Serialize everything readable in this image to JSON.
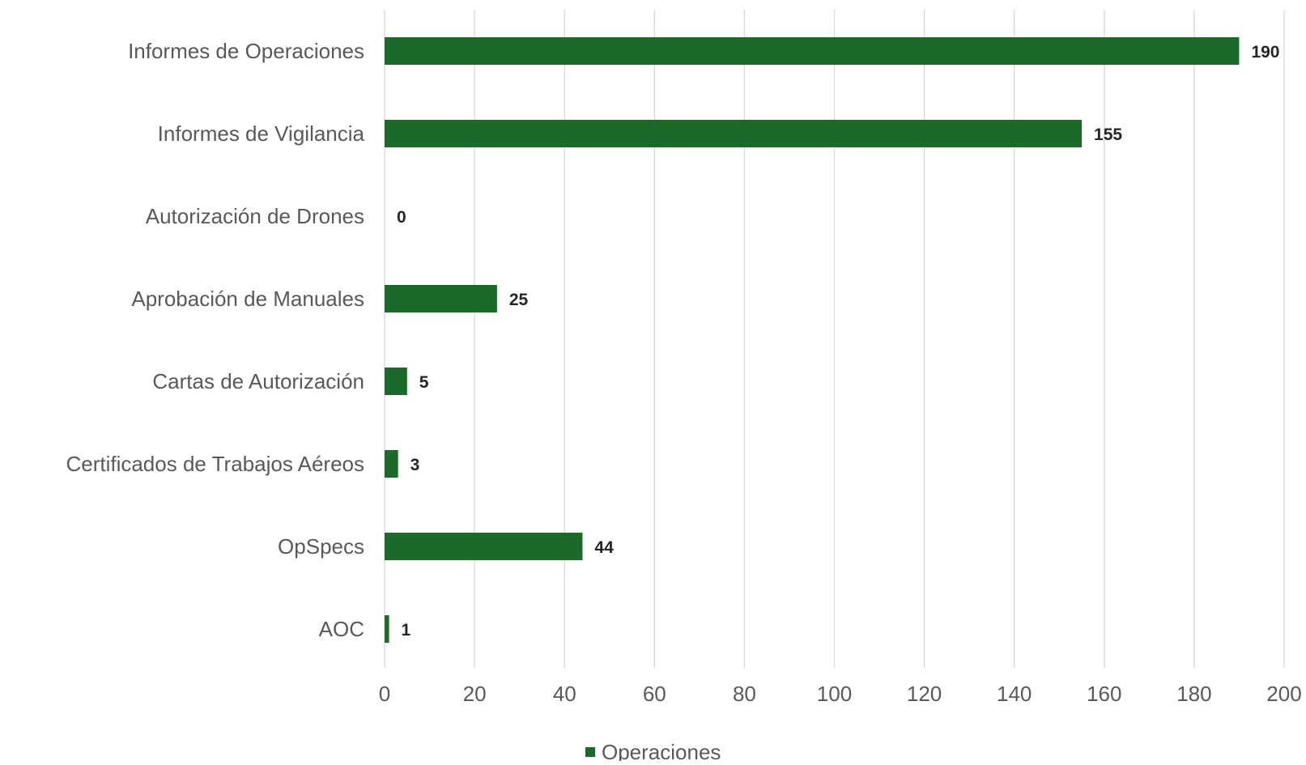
{
  "chart_data": {
    "type": "bar",
    "orientation": "horizontal",
    "categories": [
      "Informes de Operaciones",
      "Informes de Vigilancia",
      "Autorización de Drones",
      "Aprobación de Manuales",
      "Cartas de Autorización",
      "Certificados de Trabajos Aéreos",
      "OpSpecs",
      "AOC"
    ],
    "series": [
      {
        "name": "Operaciones",
        "values": [
          190,
          155,
          0,
          25,
          5,
          3,
          44,
          1
        ],
        "color": "#1a6b27"
      }
    ],
    "xlim": [
      0,
      200
    ],
    "xticks": [
      0,
      20,
      40,
      60,
      80,
      100,
      120,
      140,
      160,
      180,
      200
    ],
    "xticks_labels": [
      "0",
      "20",
      "40",
      "60",
      "80",
      "100",
      "120",
      "140",
      "160",
      "180",
      "200"
    ],
    "grid": true,
    "grid_axis": "x",
    "data_labels": true,
    "legend_position": "bottom-center",
    "title": "",
    "xlabel": "",
    "ylabel": ""
  }
}
